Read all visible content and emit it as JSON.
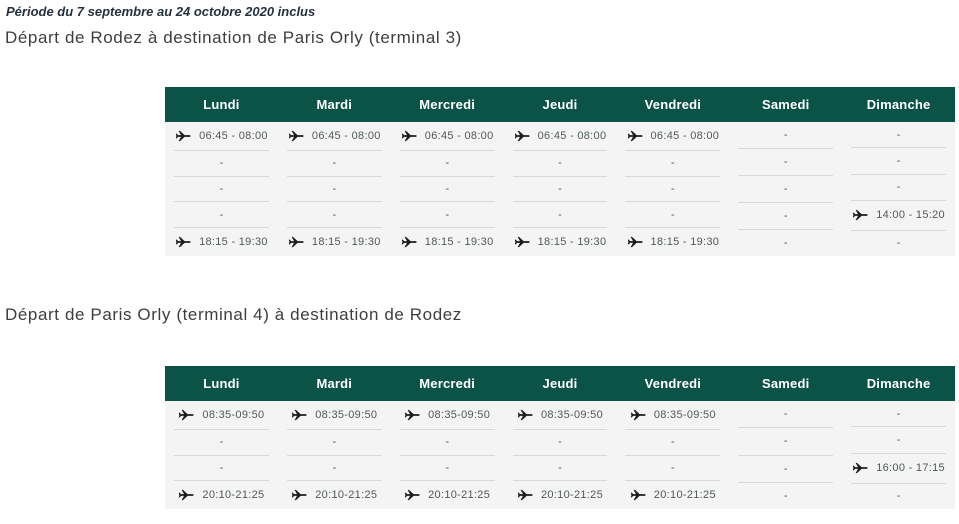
{
  "period": "Période du 7 septembre au 24 octobre 2020 inclus",
  "colors": {
    "header_bg": "#0c5347",
    "body_bg": "#f4f4f4",
    "separator": "#d8d8d8",
    "day_text": "#ffffff",
    "time_text": "#4f5a58",
    "plane_icon": "#1d1d1b",
    "heading_text": "#3d3e3d",
    "period_text": "#243140"
  },
  "icons": {
    "flight": "plane-icon"
  },
  "tables": [
    {
      "title": "Départ de Rodez à destination de Paris Orly (terminal 3)",
      "columns": [
        {
          "day": "Lundi",
          "cells": [
            {
              "type": "flight",
              "text": "06:45 - 08:00"
            },
            {
              "type": "empty",
              "text": "-"
            },
            {
              "type": "empty",
              "text": "-"
            },
            {
              "type": "empty",
              "text": "-"
            },
            {
              "type": "flight",
              "text": "18:15 - 19:30"
            }
          ]
        },
        {
          "day": "Mardi",
          "cells": [
            {
              "type": "flight",
              "text": "06:45 - 08:00"
            },
            {
              "type": "empty",
              "text": "-"
            },
            {
              "type": "empty",
              "text": "-"
            },
            {
              "type": "empty",
              "text": "-"
            },
            {
              "type": "flight",
              "text": "18:15 - 19:30"
            }
          ]
        },
        {
          "day": "Mercredi",
          "cells": [
            {
              "type": "flight",
              "text": "06:45 - 08:00"
            },
            {
              "type": "empty",
              "text": "-"
            },
            {
              "type": "empty",
              "text": "-"
            },
            {
              "type": "empty",
              "text": "-"
            },
            {
              "type": "flight",
              "text": "18:15 - 19:30"
            }
          ]
        },
        {
          "day": "Jeudi",
          "cells": [
            {
              "type": "flight",
              "text": "06:45 - 08:00"
            },
            {
              "type": "empty",
              "text": "-"
            },
            {
              "type": "empty",
              "text": "-"
            },
            {
              "type": "empty",
              "text": "-"
            },
            {
              "type": "flight",
              "text": "18:15 - 19:30"
            }
          ]
        },
        {
          "day": "Vendredi",
          "cells": [
            {
              "type": "flight",
              "text": "06:45 - 08:00"
            },
            {
              "type": "empty",
              "text": "-"
            },
            {
              "type": "empty",
              "text": "-"
            },
            {
              "type": "empty",
              "text": "-"
            },
            {
              "type": "flight",
              "text": "18:15 - 19:30"
            }
          ]
        },
        {
          "day": "Samedi",
          "cells": [
            {
              "type": "empty",
              "text": "-"
            },
            {
              "type": "empty",
              "text": "-"
            },
            {
              "type": "empty",
              "text": "-"
            },
            {
              "type": "empty",
              "text": "-"
            },
            {
              "type": "empty",
              "text": "-"
            }
          ]
        },
        {
          "day": "Dimanche",
          "cells": [
            {
              "type": "empty",
              "text": "-"
            },
            {
              "type": "empty",
              "text": "-"
            },
            {
              "type": "empty",
              "text": "-"
            },
            {
              "type": "flight",
              "text": "14:00 - 15:20"
            },
            {
              "type": "empty",
              "text": "-"
            }
          ]
        }
      ]
    },
    {
      "title": "Départ de Paris Orly (terminal 4) à destination de Rodez",
      "columns": [
        {
          "day": "Lundi",
          "cells": [
            {
              "type": "flight",
              "text": "08:35-09:50"
            },
            {
              "type": "empty",
              "text": "-"
            },
            {
              "type": "empty",
              "text": "-"
            },
            {
              "type": "flight",
              "text": "20:10-21:25"
            }
          ]
        },
        {
          "day": "Mardi",
          "cells": [
            {
              "type": "flight",
              "text": "08:35-09:50"
            },
            {
              "type": "empty",
              "text": "-"
            },
            {
              "type": "empty",
              "text": "-"
            },
            {
              "type": "flight",
              "text": "20:10-21:25"
            }
          ]
        },
        {
          "day": "Mercredi",
          "cells": [
            {
              "type": "flight",
              "text": "08:35-09:50"
            },
            {
              "type": "empty",
              "text": "-"
            },
            {
              "type": "empty",
              "text": "-"
            },
            {
              "type": "flight",
              "text": "20:10-21:25"
            }
          ]
        },
        {
          "day": "Jeudi",
          "cells": [
            {
              "type": "flight",
              "text": "08:35-09:50"
            },
            {
              "type": "empty",
              "text": "-"
            },
            {
              "type": "empty",
              "text": "-"
            },
            {
              "type": "flight",
              "text": "20:10-21:25"
            }
          ]
        },
        {
          "day": "Vendredi",
          "cells": [
            {
              "type": "flight",
              "text": "08:35-09:50"
            },
            {
              "type": "empty",
              "text": "-"
            },
            {
              "type": "empty",
              "text": "-"
            },
            {
              "type": "flight",
              "text": "20:10-21:25"
            }
          ]
        },
        {
          "day": "Samedi",
          "cells": [
            {
              "type": "empty",
              "text": "-"
            },
            {
              "type": "empty",
              "text": "-"
            },
            {
              "type": "empty",
              "text": "-"
            },
            {
              "type": "empty",
              "text": "-"
            }
          ]
        },
        {
          "day": "Dimanche",
          "cells": [
            {
              "type": "empty",
              "text": "-"
            },
            {
              "type": "empty",
              "text": "-"
            },
            {
              "type": "flight",
              "text": "16:00 - 17:15"
            },
            {
              "type": "empty",
              "text": "-"
            }
          ]
        }
      ]
    }
  ]
}
